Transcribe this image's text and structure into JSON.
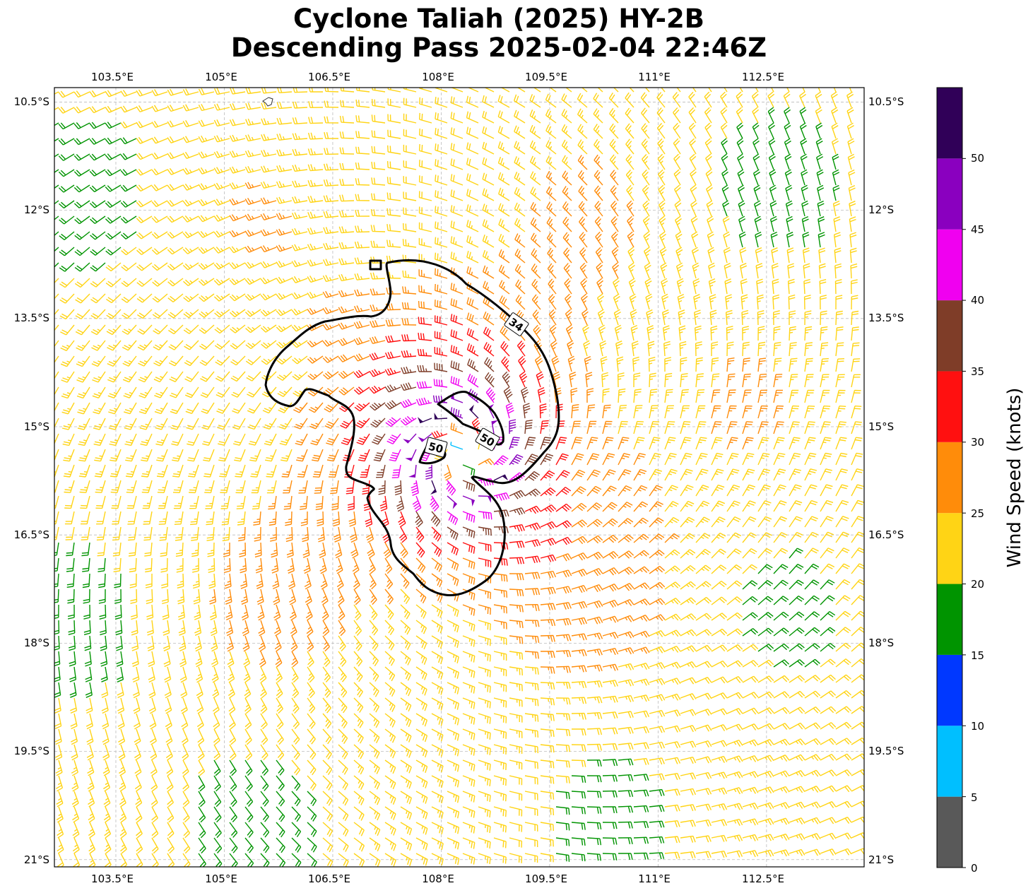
{
  "title": {
    "line1": "Cyclone Taliah (2025) HY-2B",
    "line2": "Descending Pass 2025-02-04 22:46Z"
  },
  "map": {
    "lon_ticks": [
      "103.5°E",
      "105°E",
      "106.5°E",
      "108°E",
      "109.5°E",
      "111°E",
      "112.5°E"
    ],
    "lat_ticks": [
      "10.5°S",
      "12°S",
      "13.5°S",
      "15°S",
      "16.5°S",
      "18°S",
      "19.5°S",
      "21°S"
    ],
    "lon_range": [
      102.65,
      113.85
    ],
    "lat_range": [
      -21.1,
      -10.3
    ],
    "grid": true
  },
  "contours": [
    {
      "label": "34",
      "units": "knots"
    },
    {
      "label": "50",
      "units": "knots"
    },
    {
      "label": "50",
      "units": "knots"
    }
  ],
  "colorbar": {
    "label": "Wind Speed (knots)",
    "ticks": [
      "0",
      "5",
      "10",
      "15",
      "20",
      "25",
      "30",
      "35",
      "40",
      "45",
      "50"
    ],
    "bins": [
      {
        "from": 0,
        "to": 5,
        "color": "#595959"
      },
      {
        "from": 5,
        "to": 10,
        "color": "#00bfff"
      },
      {
        "from": 10,
        "to": 15,
        "color": "#0038ff"
      },
      {
        "from": 15,
        "to": 20,
        "color": "#009400"
      },
      {
        "from": 20,
        "to": 25,
        "color": "#ffd415"
      },
      {
        "from": 25,
        "to": 30,
        "color": "#ff8c0a"
      },
      {
        "from": 30,
        "to": 35,
        "color": "#ff1010"
      },
      {
        "from": 35,
        "to": 40,
        "color": "#7f3d28"
      },
      {
        "from": 40,
        "to": 45,
        "color": "#f000f0"
      },
      {
        "from": 45,
        "to": 50,
        "color": "#8a00bf"
      },
      {
        "from": 50,
        "to": 55,
        "color": "#300058"
      }
    ]
  },
  "chart_data": {
    "type": "wind-barb map",
    "storm_center": {
      "lon": 108.3,
      "lat": -15.35
    },
    "radius_of_max_wind_deg": 0.55,
    "peak_wind_kt": 52,
    "hemisphere_rotation": "clockwise",
    "background_wind_kt": 17
  }
}
